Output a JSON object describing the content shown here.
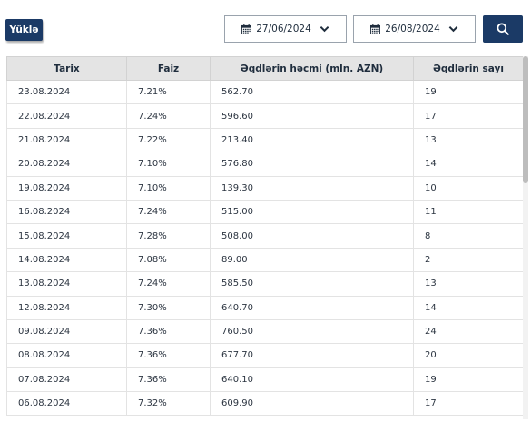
{
  "toolbar": {
    "upload_label": "Yüklə",
    "date_from": "27/06/2024",
    "date_to": "26/08/2024"
  },
  "icons": {
    "calendar": "calendar-icon",
    "chevron": "chevron-down-icon",
    "search": "search-icon"
  },
  "colors": {
    "primary": "#1b3a66",
    "header_bg": "#e4e4e4"
  },
  "table": {
    "headers": [
      "Tarix",
      "Faiz",
      "Əqdlərin həcmi (mln. AZN)",
      "Əqdlərin sayı"
    ],
    "rows": [
      [
        "23.08.2024",
        "7.21%",
        "562.70",
        "19"
      ],
      [
        "22.08.2024",
        "7.24%",
        "596.60",
        "17"
      ],
      [
        "21.08.2024",
        "7.22%",
        "213.40",
        "13"
      ],
      [
        "20.08.2024",
        "7.10%",
        "576.80",
        "14"
      ],
      [
        "19.08.2024",
        "7.10%",
        "139.30",
        "10"
      ],
      [
        "16.08.2024",
        "7.24%",
        "515.00",
        "11"
      ],
      [
        "15.08.2024",
        "7.28%",
        "508.00",
        "8"
      ],
      [
        "14.08.2024",
        "7.08%",
        "89.00",
        "2"
      ],
      [
        "13.08.2024",
        "7.24%",
        "585.50",
        "13"
      ],
      [
        "12.08.2024",
        "7.30%",
        "640.70",
        "14"
      ],
      [
        "09.08.2024",
        "7.36%",
        "760.50",
        "24"
      ],
      [
        "08.08.2024",
        "7.36%",
        "677.70",
        "20"
      ],
      [
        "07.08.2024",
        "7.36%",
        "640.10",
        "19"
      ],
      [
        "06.08.2024",
        "7.32%",
        "609.90",
        "17"
      ]
    ]
  }
}
